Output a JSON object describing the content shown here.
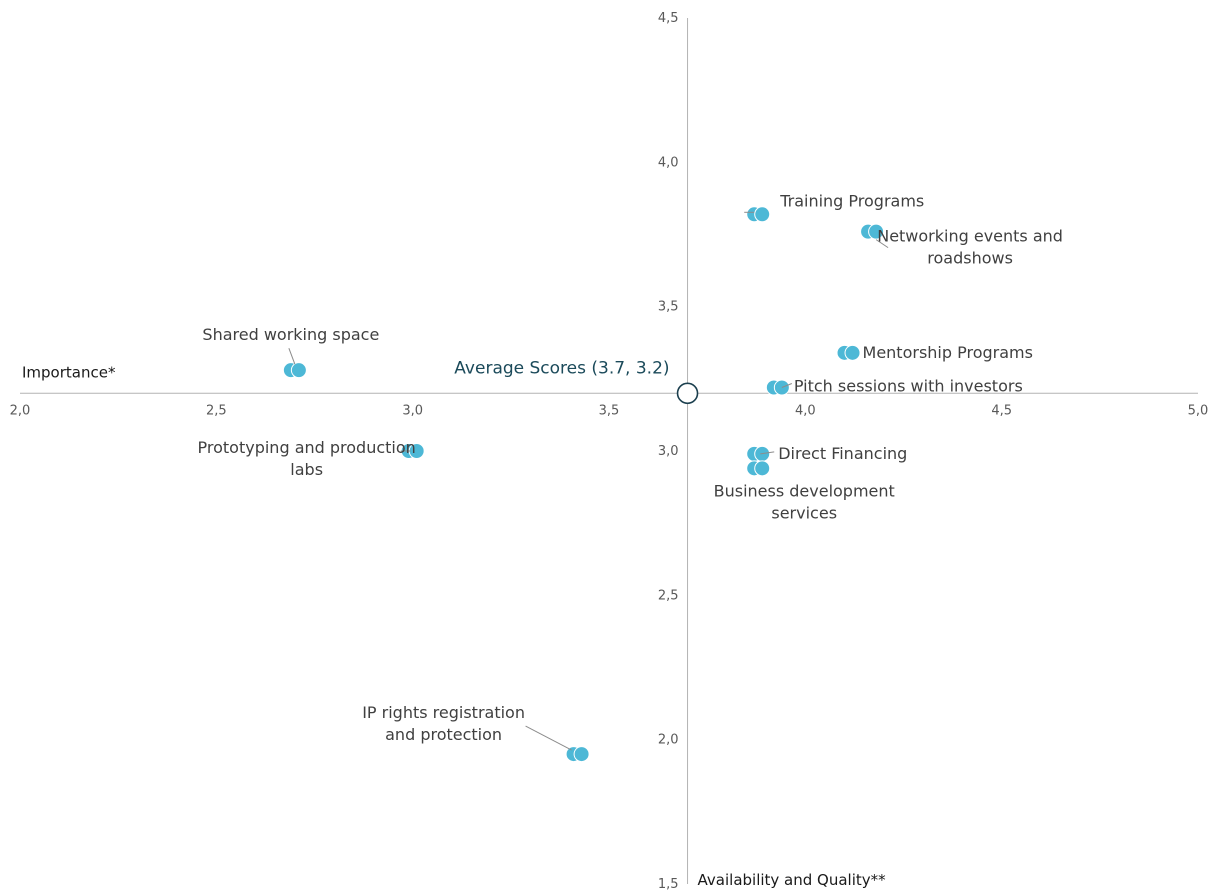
{
  "chart_data": {
    "type": "scatter",
    "x_axis": {
      "label": "Importance*",
      "range": [
        2.0,
        5.0
      ],
      "ticks": [
        2.0,
        2.5,
        3.0,
        3.5,
        4.0,
        4.5,
        5.0
      ],
      "tick_labels": [
        "2,0",
        "2,5",
        "3,0",
        "3,5",
        "4,0",
        "4,5",
        "5,0"
      ]
    },
    "y_axis": {
      "label": "Availability and Quality**",
      "range": [
        1.5,
        4.5
      ],
      "ticks": [
        1.5,
        2.0,
        2.5,
        3.0,
        3.5,
        4.0,
        4.5
      ],
      "tick_labels": [
        "1,5",
        "2,0",
        "2,5",
        "3,0",
        "3,5",
        "4,0",
        "4,5"
      ]
    },
    "axes_cross_at": {
      "x": 3.7,
      "y": 3.2
    },
    "grid": false,
    "average": {
      "x": 3.7,
      "y": 3.2,
      "label": "Average Scores (3.7, 3.2)"
    },
    "marker_color": "#4db8d6",
    "points": [
      {
        "label": "Training Programs",
        "x": 3.88,
        "y": 3.82
      },
      {
        "label": "Networking events and roadshows",
        "x": 4.17,
        "y": 3.76
      },
      {
        "label": "Shared working space",
        "x": 2.7,
        "y": 3.28
      },
      {
        "label": "Mentorship Programs",
        "x": 4.11,
        "y": 3.34
      },
      {
        "label": "Pitch sessions with investors",
        "x": 3.93,
        "y": 3.22
      },
      {
        "label": "Prototyping and production labs",
        "x": 3.0,
        "y": 3.0
      },
      {
        "label": "Direct Financing",
        "x": 3.88,
        "y": 2.99
      },
      {
        "label": "Business development services",
        "x": 3.88,
        "y": 2.94
      },
      {
        "label": "IP rights registration and protection",
        "x": 3.42,
        "y": 1.95
      }
    ]
  }
}
